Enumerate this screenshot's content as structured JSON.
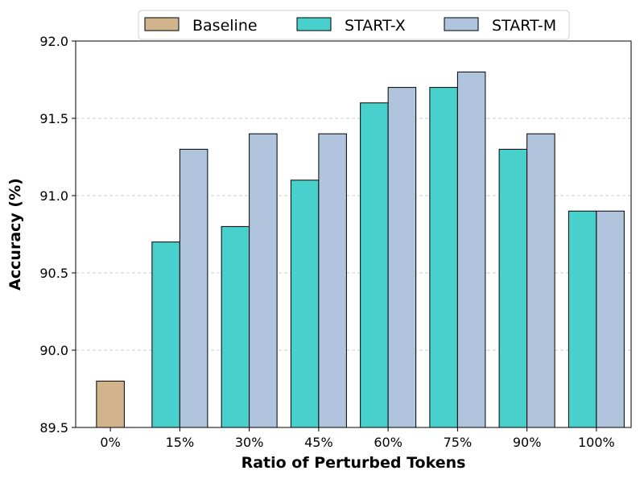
{
  "chart_data": {
    "type": "bar",
    "title": "",
    "xlabel": "Ratio of Perturbed Tokens",
    "ylabel": "Accuracy (%)",
    "categories": [
      "0%",
      "15%",
      "30%",
      "45%",
      "60%",
      "75%",
      "90%",
      "100%"
    ],
    "ylim": [
      89.5,
      92.0
    ],
    "yticks": [
      "89.5",
      "90.0",
      "90.5",
      "91.0",
      "91.5",
      "92.0"
    ],
    "grid": "y-dashed",
    "legend_position": "top-center",
    "series": [
      {
        "name": "Baseline",
        "color": "#D2B48C",
        "values": [
          89.8,
          null,
          null,
          null,
          null,
          null,
          null,
          null
        ]
      },
      {
        "name": "START-X",
        "color": "#48D1CC",
        "values": [
          null,
          90.7,
          90.8,
          91.1,
          91.6,
          91.7,
          91.3,
          90.9
        ]
      },
      {
        "name": "START-M",
        "color": "#B0C4DE",
        "values": [
          null,
          91.3,
          91.4,
          91.4,
          91.7,
          91.8,
          91.4,
          90.9
        ]
      }
    ]
  }
}
